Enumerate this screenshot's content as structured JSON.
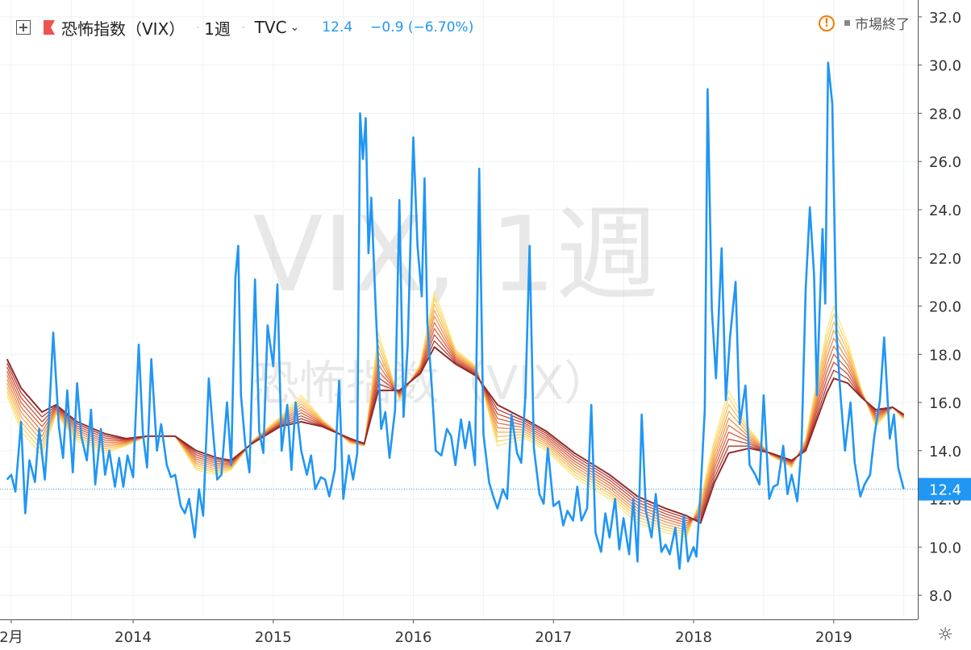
{
  "header": {
    "symbol_name": "恐怖指数（VIX）",
    "interval": "1週",
    "exchange": "TVC",
    "last_value": "12.4",
    "change": "−0.9 (−6.70%)"
  },
  "status": {
    "label": "市場終了"
  },
  "watermark": {
    "line1": "VIX, 1週",
    "line2": "恐怖指数（VIX）"
  },
  "colors": {
    "price_line": "#2196f3",
    "ma_ribbon": [
      "#fde779",
      "#fbd56a",
      "#f8c05e",
      "#f4a955",
      "#ee914d",
      "#e57846",
      "#d9613f",
      "#c84c38",
      "#b03a31",
      "#912c28"
    ],
    "grid": "#eef2f6",
    "price_label_bg": "#2196f3"
  },
  "chart_data": {
    "type": "line",
    "title": "恐怖指数（VIX）",
    "ylim": [
      7,
      32.7
    ],
    "y_ticks": [
      "8.0",
      "10.0",
      "12.0",
      "14.0",
      "16.0",
      "18.0",
      "20.0",
      "22.0",
      "24.0",
      "26.0",
      "28.0",
      "30.0",
      "32.0"
    ],
    "x_tick_labels": [
      {
        "label": "2月",
        "x": 2013.13
      },
      {
        "label": "2014",
        "x": 2014.0
      },
      {
        "label": "2015",
        "x": 2015.0
      },
      {
        "label": "2016",
        "x": 2016.0
      },
      {
        "label": "2017",
        "x": 2017.0
      },
      {
        "label": "2018",
        "x": 2018.0
      },
      {
        "label": "2019",
        "x": 2019.0
      }
    ],
    "current_price_label": "12.4",
    "grid": true,
    "series": [
      {
        "role": "price",
        "x": [
          2013.1,
          2013.13,
          2013.16,
          2013.2,
          2013.23,
          2013.26,
          2013.3,
          2013.33,
          2013.37,
          2013.4,
          2013.43,
          2013.47,
          2013.5,
          2013.53,
          2013.57,
          2013.6,
          2013.63,
          2013.67,
          2013.7,
          2013.73,
          2013.77,
          2013.8,
          2013.83,
          2013.87,
          2013.9,
          2013.93,
          2013.96,
          2014.0,
          2014.04,
          2014.07,
          2014.1,
          2014.13,
          2014.17,
          2014.2,
          2014.24,
          2014.27,
          2014.3,
          2014.34,
          2014.37,
          2014.4,
          2014.44,
          2014.47,
          2014.5,
          2014.54,
          2014.57,
          2014.6,
          2014.63,
          2014.67,
          2014.7,
          2014.73,
          2014.75,
          2014.77,
          2014.8,
          2014.83,
          2014.87,
          2014.9,
          2014.93,
          2014.96,
          2015.0,
          2015.03,
          2015.06,
          2015.1,
          2015.13,
          2015.16,
          2015.2,
          2015.24,
          2015.27,
          2015.3,
          2015.34,
          2015.37,
          2015.4,
          2015.44,
          2015.47,
          2015.5,
          2015.54,
          2015.57,
          2015.6,
          2015.62,
          2015.64,
          2015.66,
          2015.68,
          2015.7,
          2015.73,
          2015.77,
          2015.8,
          2015.83,
          2015.87,
          2015.9,
          2015.93,
          2015.96,
          2016.0,
          2016.03,
          2016.06,
          2016.08,
          2016.1,
          2016.13,
          2016.16,
          2016.2,
          2016.24,
          2016.27,
          2016.3,
          2016.34,
          2016.37,
          2016.4,
          2016.44,
          2016.47,
          2016.5,
          2016.54,
          2016.57,
          2016.6,
          2016.64,
          2016.67,
          2016.7,
          2016.74,
          2016.77,
          2016.8,
          2016.83,
          2016.86,
          2016.9,
          2016.93,
          2016.96,
          2017.0,
          2017.04,
          2017.07,
          2017.1,
          2017.14,
          2017.17,
          2017.2,
          2017.24,
          2017.27,
          2017.3,
          2017.34,
          2017.37,
          2017.4,
          2017.44,
          2017.47,
          2017.5,
          2017.54,
          2017.57,
          2017.6,
          2017.63,
          2017.66,
          2017.7,
          2017.73,
          2017.77,
          2017.8,
          2017.83,
          2017.87,
          2017.9,
          2017.93,
          2017.96,
          2018.0,
          2018.02,
          2018.05,
          2018.08,
          2018.1,
          2018.13,
          2018.16,
          2018.2,
          2018.23,
          2018.26,
          2018.3,
          2018.33,
          2018.37,
          2018.4,
          2018.44,
          2018.47,
          2018.5,
          2018.54,
          2018.57,
          2018.6,
          2018.64,
          2018.67,
          2018.7,
          2018.74,
          2018.77,
          2018.8,
          2018.83,
          2018.86,
          2018.88,
          2018.9,
          2018.92,
          2018.94,
          2018.96,
          2018.99,
          2019.02,
          2019.05,
          2019.08,
          2019.12,
          2019.15,
          2019.19,
          2019.22,
          2019.26,
          2019.29,
          2019.33,
          2019.36,
          2019.4,
          2019.43,
          2019.46,
          2019.5
        ],
        "y": [
          12.8,
          13.0,
          12.3,
          15.2,
          11.4,
          13.6,
          12.7,
          14.9,
          12.8,
          15.4,
          18.9,
          15.0,
          13.7,
          16.5,
          13.1,
          16.8,
          14.6,
          13.6,
          15.7,
          12.6,
          14.9,
          13.0,
          14.0,
          12.5,
          13.7,
          12.5,
          13.8,
          12.9,
          18.4,
          14.7,
          13.3,
          17.8,
          14.0,
          15.1,
          13.4,
          12.9,
          13.0,
          11.7,
          11.4,
          12.0,
          10.4,
          12.4,
          11.3,
          17.0,
          14.8,
          12.8,
          13.0,
          16.0,
          13.4,
          21.2,
          22.5,
          16.3,
          14.3,
          13.1,
          21.1,
          14.8,
          13.9,
          19.2,
          17.5,
          20.9,
          14.0,
          15.9,
          13.2,
          16.0,
          14.0,
          13.0,
          13.8,
          12.4,
          12.9,
          12.8,
          12.1,
          13.2,
          16.9,
          12.0,
          13.8,
          12.8,
          13.9,
          28.0,
          26.1,
          27.8,
          22.2,
          24.5,
          20.1,
          14.9,
          15.6,
          13.7,
          15.7,
          24.4,
          15.4,
          18.4,
          27.0,
          22.5,
          20.4,
          25.3,
          19.3,
          16.8,
          14.0,
          13.8,
          14.9,
          14.6,
          13.4,
          15.3,
          14.1,
          15.2,
          13.4,
          25.7,
          14.7,
          12.7,
          12.1,
          11.6,
          12.4,
          12.0,
          15.5,
          13.9,
          13.5,
          16.3,
          22.5,
          14.1,
          12.2,
          11.8,
          14.1,
          11.7,
          11.9,
          10.9,
          11.5,
          11.1,
          12.5,
          11.1,
          11.6,
          15.9,
          10.6,
          9.8,
          11.4,
          10.4,
          12.0,
          9.9,
          11.2,
          9.7,
          12.0,
          9.4,
          15.5,
          11.5,
          10.4,
          12.2,
          9.8,
          10.1,
          9.7,
          10.8,
          9.1,
          11.3,
          9.4,
          10.0,
          9.6,
          12.3,
          15.7,
          29.0,
          19.9,
          17.0,
          22.4,
          16.1,
          18.7,
          21.0,
          15.1,
          16.7,
          13.4,
          13.0,
          12.6,
          16.3,
          12.0,
          12.5,
          12.6,
          14.2,
          12.2,
          13.0,
          11.9,
          14.1,
          20.7,
          24.1,
          21.3,
          16.3,
          19.9,
          23.2,
          20.1,
          30.1,
          28.4,
          18.9,
          16.2,
          14.0,
          16.0,
          13.5,
          12.1,
          12.6,
          13.0,
          14.6,
          16.1,
          18.7,
          14.5,
          15.5,
          13.3,
          12.4
        ]
      },
      {
        "role": "ma-fast",
        "x": [
          2013.1,
          2013.2,
          2013.35,
          2013.45,
          2013.6,
          2013.8,
          2013.95,
          2014.1,
          2014.3,
          2014.45,
          2014.6,
          2014.7,
          2014.85,
          2015.05,
          2015.2,
          2015.35,
          2015.55,
          2015.65,
          2015.75,
          2015.9,
          2016.05,
          2016.15,
          2016.3,
          2016.45,
          2016.6,
          2016.8,
          2016.95,
          2017.15,
          2017.4,
          2017.6,
          2017.8,
          2017.95,
          2018.05,
          2018.15,
          2018.25,
          2018.4,
          2018.55,
          2018.7,
          2018.8,
          2018.95,
          2019.0,
          2019.1,
          2019.2,
          2019.3,
          2019.42,
          2019.5
        ],
        "y": [
          16.3,
          14.8,
          13.8,
          15.5,
          14.4,
          13.9,
          14.2,
          14.6,
          14.6,
          13.2,
          13.0,
          13.2,
          14.4,
          15.4,
          16.3,
          15.3,
          14.3,
          14.2,
          18.9,
          16.1,
          17.6,
          20.6,
          18.2,
          17.5,
          14.2,
          14.5,
          14.0,
          12.9,
          12.0,
          11.0,
          10.6,
          10.4,
          12.0,
          14.5,
          16.5,
          14.9,
          13.8,
          13.3,
          14.5,
          19.0,
          20.0,
          18.5,
          16.5,
          15.0,
          15.8,
          15.3
        ]
      },
      {
        "role": "ma-slow",
        "x": [
          2013.1,
          2013.2,
          2013.35,
          2013.45,
          2013.6,
          2013.8,
          2013.95,
          2014.1,
          2014.3,
          2014.45,
          2014.6,
          2014.7,
          2014.85,
          2015.05,
          2015.2,
          2015.35,
          2015.55,
          2015.65,
          2015.75,
          2015.9,
          2016.05,
          2016.15,
          2016.3,
          2016.45,
          2016.6,
          2016.8,
          2016.95,
          2017.15,
          2017.4,
          2017.6,
          2017.8,
          2017.95,
          2018.05,
          2018.15,
          2018.25,
          2018.4,
          2018.55,
          2018.7,
          2018.8,
          2018.95,
          2019.0,
          2019.1,
          2019.2,
          2019.3,
          2019.42,
          2019.5
        ],
        "y": [
          17.8,
          16.6,
          15.6,
          15.9,
          15.2,
          14.7,
          14.5,
          14.6,
          14.6,
          14.0,
          13.7,
          13.6,
          14.3,
          15.0,
          15.2,
          15.0,
          14.5,
          14.3,
          16.5,
          16.5,
          17.2,
          18.3,
          17.6,
          17.1,
          15.9,
          15.3,
          14.8,
          13.9,
          13.0,
          12.1,
          11.6,
          11.3,
          11.0,
          12.7,
          13.9,
          14.1,
          13.9,
          13.6,
          14.0,
          16.4,
          17.0,
          16.8,
          16.2,
          15.7,
          15.8,
          15.5
        ]
      }
    ]
  }
}
